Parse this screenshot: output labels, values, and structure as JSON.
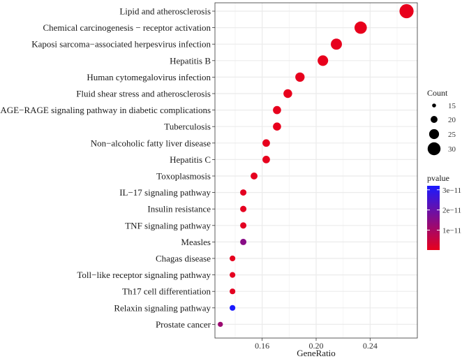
{
  "chart_data": {
    "type": "scatter",
    "title": "",
    "xlabel": "GeneRatio",
    "ylabel": "",
    "xlim": [
      0.125,
      0.275
    ],
    "xticks": [
      0.16,
      0.2,
      0.24
    ],
    "x_tick_labels": [
      "0.16",
      "0.20",
      "0.24"
    ],
    "grid": true,
    "categories": [
      "Lipid and atherosclerosis",
      "Chemical carcinogenesis − receptor activation",
      "Kaposi sarcoma−associated herpesvirus infection",
      "Hepatitis B",
      "Human cytomegalovirus infection",
      "Fluid shear stress and atherosclerosis",
      "AGE−RAGE signaling pathway in diabetic complications",
      "Tuberculosis",
      "Non−alcoholic fatty liver disease",
      "Hepatitis C",
      "Toxoplasmosis",
      "IL−17 signaling pathway",
      "Insulin resistance",
      "TNF signaling pathway",
      "Measles",
      "Chagas disease",
      "Toll−like receptor signaling pathway",
      "Th17 cell differentiation",
      "Relaxin signaling pathway",
      "Prostate cancer"
    ],
    "x": [
      0.267,
      0.233,
      0.215,
      0.205,
      0.188,
      0.179,
      0.171,
      0.171,
      0.163,
      0.163,
      0.154,
      0.146,
      0.146,
      0.146,
      0.146,
      0.138,
      0.138,
      0.138,
      0.138,
      0.129
    ],
    "count": [
      32,
      29,
      27,
      26,
      24,
      23,
      22,
      22,
      21,
      21,
      20,
      19,
      19,
      19,
      19,
      18,
      18,
      18,
      18,
      17
    ],
    "pvalue": [
      1e-13,
      1e-13,
      2e-13,
      1e-13,
      3e-13,
      1e-13,
      2e-13,
      1e-13,
      3e-13,
      3e-13,
      5e-13,
      8e-13,
      6e-13,
      9e-13,
      1.5e-11,
      4e-13,
      6e-13,
      8e-13,
      3.2e-11,
      1.2e-11
    ],
    "size_legend": {
      "title": "Count",
      "values": [
        15,
        20,
        25,
        30
      ],
      "labels": [
        "15",
        "20",
        "25",
        "30"
      ]
    },
    "color_legend": {
      "title": "pvalue",
      "low_color": "#e8001c",
      "high_color": "#1a1aff",
      "range": [
        1e-13,
        3.2e-11
      ],
      "ticks": [
        1e-11,
        2e-11,
        3e-11
      ],
      "tick_labels": [
        "1e−11",
        "2e−11",
        "3e−11"
      ]
    },
    "colors": {
      "panel_background": "#ffffff",
      "grid": "#ebebeb",
      "border": "#333333"
    }
  }
}
